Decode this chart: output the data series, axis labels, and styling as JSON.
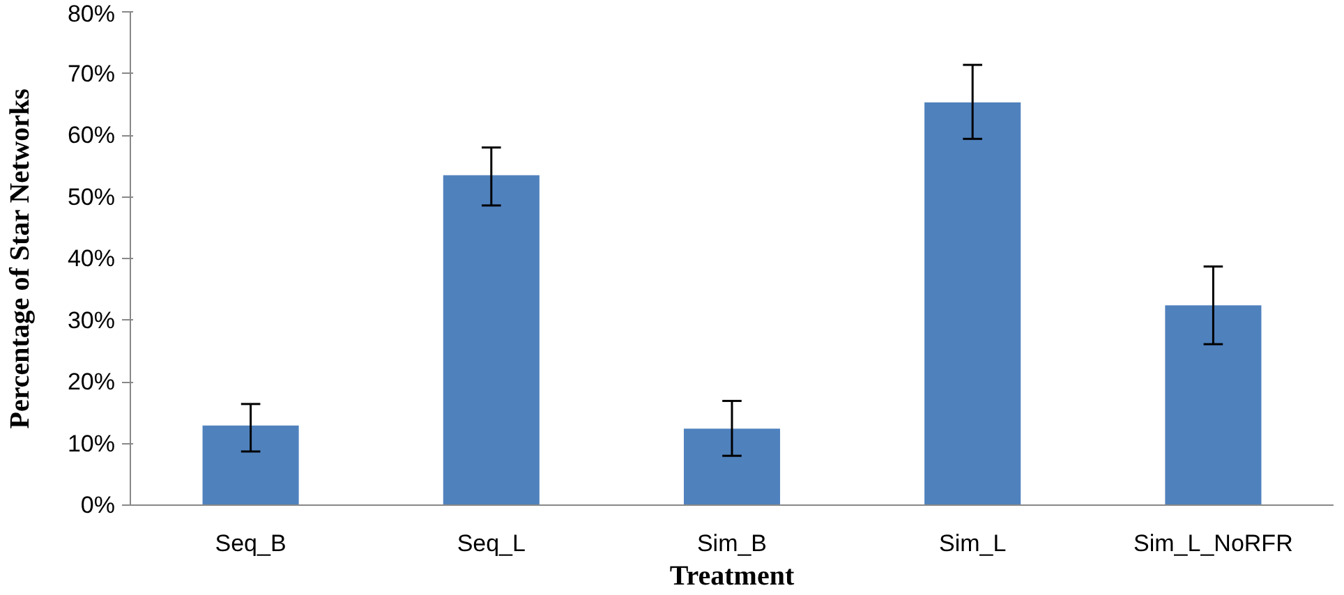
{
  "chart_data": {
    "type": "bar",
    "xlabel": "Treatment",
    "ylabel": "Percentage of Star Networks",
    "categories": [
      "Seq_B",
      "Seq_L",
      "Sim_B",
      "Sim_L",
      "Sim_L_NoRFR"
    ],
    "values": [
      12.9,
      53.5,
      12.4,
      65.3,
      32.4
    ],
    "errors": [
      [
        8.7,
        16.4
      ],
      [
        48.6,
        58
      ],
      [
        8,
        16.9
      ],
      [
        59.4,
        71.4
      ],
      [
        26.1,
        38.7
      ]
    ],
    "color": "#4f81bd",
    "ylim": [
      0,
      80
    ],
    "yticks": [
      {
        "value": 0,
        "label": "0%"
      },
      {
        "value": 10,
        "label": "10%"
      },
      {
        "value": 20,
        "label": "20%"
      },
      {
        "value": 30,
        "label": "30%"
      },
      {
        "value": 40,
        "label": "40%"
      },
      {
        "value": 50,
        "label": "50%"
      },
      {
        "value": 60,
        "label": "60%"
      },
      {
        "value": 70,
        "label": "70%"
      },
      {
        "value": 80,
        "label": "80%"
      }
    ],
    "grid": false
  }
}
